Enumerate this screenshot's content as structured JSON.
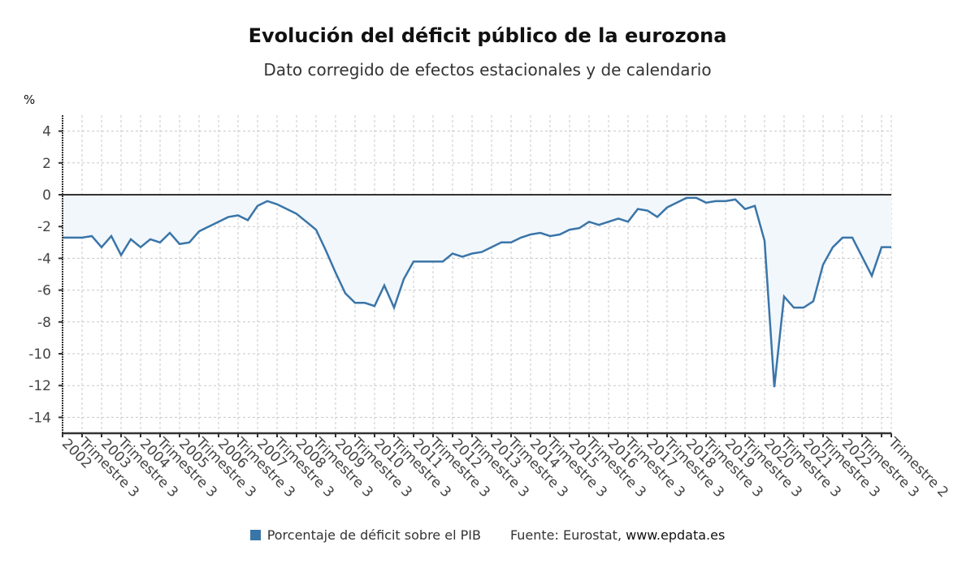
{
  "chart_data": {
    "type": "area",
    "title": "Evolución del déficit público de la eurozona",
    "subtitle": "Dato corregido de efectos estacionales y de calendario",
    "ylabel": "%",
    "xlabel": "",
    "ylim": [
      -15,
      5
    ],
    "yticks": [
      4,
      2,
      0,
      -2,
      -4,
      -6,
      -8,
      -10,
      -12,
      -14
    ],
    "grid": true,
    "baseline": 0,
    "x": [
      "2002 T1",
      "2002 T2",
      "2002 T3",
      "2002 T4",
      "2003 T1",
      "2003 T2",
      "2003 T3",
      "2003 T4",
      "2004 T1",
      "2004 T2",
      "2004 T3",
      "2004 T4",
      "2005 T1",
      "2005 T2",
      "2005 T3",
      "2005 T4",
      "2006 T1",
      "2006 T2",
      "2006 T3",
      "2006 T4",
      "2007 T1",
      "2007 T2",
      "2007 T3",
      "2007 T4",
      "2008 T1",
      "2008 T2",
      "2008 T3",
      "2008 T4",
      "2009 T1",
      "2009 T2",
      "2009 T3",
      "2009 T4",
      "2010 T1",
      "2010 T2",
      "2010 T3",
      "2010 T4",
      "2011 T1",
      "2011 T2",
      "2011 T3",
      "2011 T4",
      "2012 T1",
      "2012 T2",
      "2012 T3",
      "2012 T4",
      "2013 T1",
      "2013 T2",
      "2013 T3",
      "2013 T4",
      "2014 T1",
      "2014 T2",
      "2014 T3",
      "2014 T4",
      "2015 T1",
      "2015 T2",
      "2015 T3",
      "2015 T4",
      "2016 T1",
      "2016 T2",
      "2016 T3",
      "2016 T4",
      "2017 T1",
      "2017 T2",
      "2017 T3",
      "2017 T4",
      "2018 T1",
      "2018 T2",
      "2018 T3",
      "2018 T4",
      "2019 T1",
      "2019 T2",
      "2019 T3",
      "2019 T4",
      "2020 T1",
      "2020 T2",
      "2020 T3",
      "2020 T4",
      "2021 T1",
      "2021 T2",
      "2021 T3",
      "2021 T4",
      "2022 T1",
      "2022 T2",
      "2022 T3",
      "2022 T4",
      "2023 T1",
      "2023 T2"
    ],
    "series": [
      {
        "name": "Porcentaje de déficit sobre el PIB",
        "color": "#3a75a8",
        "fill_color": "#f2f7fc",
        "values": [
          -2.7,
          -2.7,
          -2.7,
          -2.6,
          -3.3,
          -2.6,
          -3.8,
          -2.8,
          -3.3,
          -2.8,
          -3.0,
          -2.4,
          -3.1,
          -3.0,
          -2.3,
          -2.0,
          -1.7,
          -1.4,
          -1.3,
          -1.6,
          -0.7,
          -0.4,
          -0.6,
          -0.9,
          -1.2,
          -1.7,
          -2.2,
          -3.5,
          -4.9,
          -6.2,
          -6.8,
          -6.8,
          -7.0,
          -5.7,
          -7.1,
          -5.3,
          -4.2,
          -4.2,
          -4.2,
          -4.2,
          -3.7,
          -3.9,
          -3.7,
          -3.6,
          -3.3,
          -3.0,
          -3.0,
          -2.7,
          -2.5,
          -2.4,
          -2.6,
          -2.5,
          -2.2,
          -2.1,
          -1.7,
          -1.9,
          -1.7,
          -1.5,
          -1.7,
          -0.9,
          -1.0,
          -1.4,
          -0.8,
          -0.5,
          -0.2,
          -0.2,
          -0.5,
          -0.4,
          -0.4,
          -0.3,
          -0.9,
          -0.7,
          -2.9,
          -12.1,
          -6.4,
          -7.1,
          -7.1,
          -6.7,
          -4.4,
          -3.3,
          -2.7,
          -2.7,
          -3.9,
          -5.1,
          -3.3,
          -3.3
        ]
      }
    ],
    "xtick_labels": [
      {
        "index": 2,
        "line1": "Trimestre 3",
        "line2": "2002"
      },
      {
        "index": 6,
        "line1": "Trimestre 3",
        "line2": "2003"
      },
      {
        "index": 10,
        "line1": "Trimestre 3",
        "line2": "2004"
      },
      {
        "index": 14,
        "line1": "Trimestre 3",
        "line2": "2005"
      },
      {
        "index": 18,
        "line1": "Trimestre 3",
        "line2": "2006"
      },
      {
        "index": 22,
        "line1": "Trimestre 3",
        "line2": "2007"
      },
      {
        "index": 26,
        "line1": "Trimestre 3",
        "line2": "2008"
      },
      {
        "index": 30,
        "line1": "Trimestre 3",
        "line2": "2009"
      },
      {
        "index": 34,
        "line1": "Trimestre 3",
        "line2": "2010"
      },
      {
        "index": 38,
        "line1": "Trimestre 3",
        "line2": "2011"
      },
      {
        "index": 42,
        "line1": "Trimestre 3",
        "line2": "2012"
      },
      {
        "index": 46,
        "line1": "Trimestre 3",
        "line2": "2013"
      },
      {
        "index": 50,
        "line1": "Trimestre 3",
        "line2": "2014"
      },
      {
        "index": 54,
        "line1": "Trimestre 3",
        "line2": "2015"
      },
      {
        "index": 58,
        "line1": "Trimestre 3",
        "line2": "2016"
      },
      {
        "index": 62,
        "line1": "Trimestre 3",
        "line2": "2017"
      },
      {
        "index": 66,
        "line1": "Trimestre 3",
        "line2": "2018"
      },
      {
        "index": 70,
        "line1": "Trimestre 3",
        "line2": "2019"
      },
      {
        "index": 74,
        "line1": "Trimestre 3",
        "line2": "2020"
      },
      {
        "index": 78,
        "line1": "Trimestre 3",
        "line2": "2021"
      },
      {
        "index": 82,
        "line1": "Trimestre 3",
        "line2": "2022"
      },
      {
        "index": 85,
        "line1": "Trimestre 2",
        "line2": ""
      }
    ],
    "legend": {
      "position": "bottom-center",
      "entries": [
        {
          "label": "Porcentaje de déficit sobre el PIB",
          "color": "#3a75a8"
        }
      ]
    }
  },
  "header": {
    "title": "Evolución del déficit público de la eurozona",
    "subtitle": "Dato corregido de efectos estacionales y de calendario",
    "ylabel": "%"
  },
  "footer": {
    "legend_label": "Porcentaje de déficit sobre el PIB",
    "legend_color": "#3a75a8",
    "source_prefix": "Fuente: Eurostat, ",
    "source_site": "www.epdata.es"
  }
}
